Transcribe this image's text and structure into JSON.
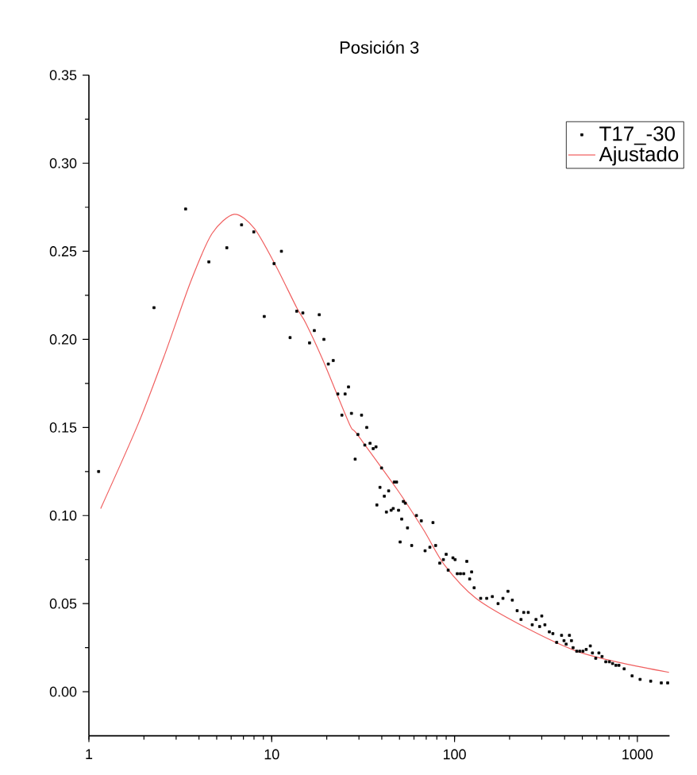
{
  "chart_data": {
    "type": "scatter",
    "title": "Posición 3",
    "log": "x",
    "legend": "top right",
    "xlim": [
      1,
      1500
    ],
    "ylim": [
      -0.025,
      0.35
    ],
    "xticks": [
      1,
      10,
      100,
      1000
    ],
    "yticks": [
      {
        "value": 0,
        "label": "0.00"
      },
      {
        "value": 0.05,
        "label": "0.05"
      },
      {
        "value": 0.1,
        "label": "0.10"
      },
      {
        "value": 0.15,
        "label": "0.15"
      },
      {
        "value": 0.2,
        "label": "0.20"
      },
      {
        "value": 0.25,
        "label": "0.25"
      },
      {
        "value": 0.3,
        "label": "0.30"
      },
      {
        "value": 0.35,
        "label": "0.35"
      }
    ],
    "series": [
      {
        "name": "T17_-30",
        "marker": "square",
        "color": "#000000",
        "x": [
          1.13,
          2.27,
          3.38,
          4.53,
          5.68,
          6.84,
          7.98,
          9.1,
          10.3,
          11.3,
          12.6,
          13.7,
          14.8,
          16.1,
          17.1,
          18.2,
          19.3,
          20.4,
          21.7,
          23,
          24.2,
          25.2,
          26.3,
          27.3,
          28.6,
          29.6,
          31.0,
          32.3,
          33.1,
          34.5,
          35.9,
          37.2,
          37.6,
          39.1,
          39.9,
          41.3,
          42.4,
          43.6,
          45.0,
          46.2,
          46.8,
          48.2,
          49.4,
          50.4,
          51.4,
          52.5,
          53.8,
          55.3,
          58.3,
          61.9,
          65.8,
          69.0,
          73.3,
          76.2,
          78.8,
          83,
          86.9,
          90,
          92.3,
          98,
          100.7,
          103.5,
          107.7,
          112.3,
          116.7,
          121,
          124,
          128,
          139,
          150,
          161,
          173,
          184,
          196,
          207,
          220,
          231,
          239,
          253,
          266,
          279,
          292,
          300,
          312,
          330,
          345,
          362,
          385,
          397,
          408,
          425,
          436,
          445,
          466,
          484,
          504,
          525,
          553,
          568,
          592,
          616,
          641,
          672,
          703,
          732,
          763,
          793,
          847,
          936,
          1035,
          1183,
          1352,
          1465
        ],
        "values": [
          0.125,
          0.218,
          0.274,
          0.244,
          0.252,
          0.265,
          0.261,
          0.213,
          0.243,
          0.25,
          0.201,
          0.216,
          0.215,
          0.198,
          0.205,
          0.214,
          0.2,
          0.186,
          0.188,
          0.169,
          0.157,
          0.169,
          0.173,
          0.158,
          0.132,
          0.146,
          0.157,
          0.14,
          0.15,
          0.141,
          0.138,
          0.139,
          0.106,
          0.116,
          0.127,
          0.111,
          0.102,
          0.114,
          0.103,
          0.104,
          0.119,
          0.119,
          0.103,
          0.085,
          0.098,
          0.108,
          0.107,
          0.093,
          0.083,
          0.1,
          0.097,
          0.08,
          0.082,
          0.096,
          0.083,
          0.073,
          0.075,
          0.078,
          0.069,
          0.076,
          0.075,
          0.067,
          0.067,
          0.067,
          0.074,
          0.064,
          0.068,
          0.059,
          0.053,
          0.053,
          0.054,
          0.05,
          0.053,
          0.057,
          0.052,
          0.046,
          0.041,
          0.045,
          0.045,
          0.038,
          0.041,
          0.037,
          0.043,
          0.038,
          0.034,
          0.033,
          0.028,
          0.032,
          0.029,
          0.027,
          0.032,
          0.029,
          0.025,
          0.023,
          0.023,
          0.023,
          0.024,
          0.026,
          0.022,
          0.019,
          0.022,
          0.02,
          0.017,
          0.017,
          0.016,
          0.015,
          0.015,
          0.013,
          0.009,
          0.007,
          0.006,
          0.005,
          0.005
        ]
      },
      {
        "name": "Ajustado",
        "type": "line",
        "color": "#f06060",
        "x": [
          1.16,
          1.86,
          2.59,
          3.61,
          4.71,
          6.23,
          8.03,
          10.5,
          13.7,
          15.4,
          19.1,
          26.6,
          29.4,
          48.4,
          67.6,
          88,
          131,
          239,
          466,
          847,
          1490
        ],
        "values": [
          0.104,
          0.152,
          0.191,
          0.233,
          0.26,
          0.271,
          0.263,
          0.242,
          0.218,
          0.209,
          0.188,
          0.152,
          0.146,
          0.115,
          0.092,
          0.072,
          0.053,
          0.037,
          0.023,
          0.016,
          0.011
        ]
      }
    ]
  }
}
